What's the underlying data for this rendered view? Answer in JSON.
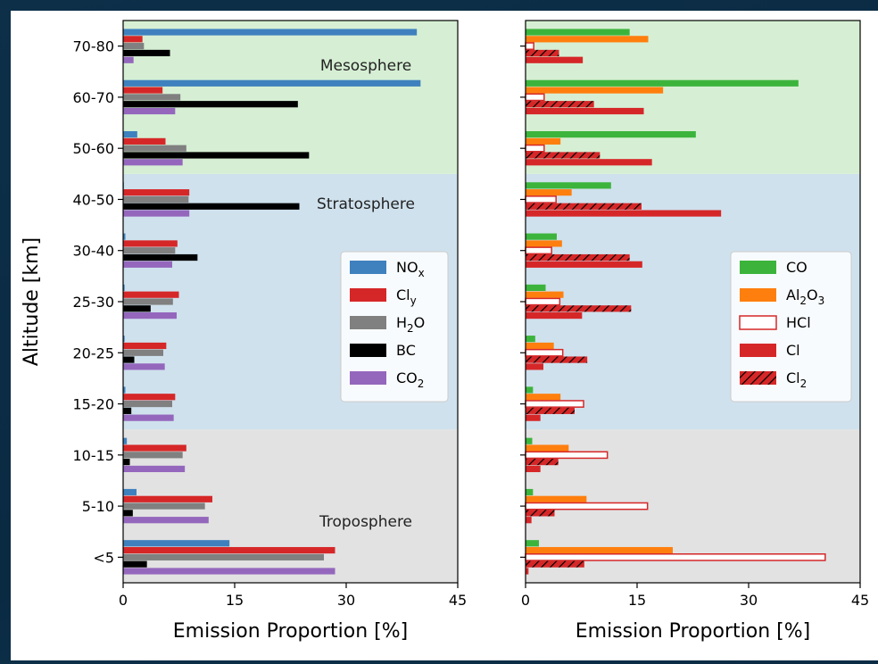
{
  "chart_data": [
    {
      "type": "bar",
      "orientation": "horizontal",
      "xlabel": "Emission Proportion [%]",
      "ylabel": "Altitude [km]",
      "xlim": [
        0,
        45
      ],
      "xticks": [
        "0",
        "15",
        "30",
        "45"
      ],
      "categories": [
        "<5",
        "5-10",
        "10-15",
        "15-20",
        "20-25",
        "25-30",
        "30-40",
        "40-50",
        "50-60",
        "60-70",
        "70-80"
      ],
      "regions": [
        {
          "label": "Troposphere",
          "from": "<5",
          "to": "15-20",
          "color": "#e2e2e2"
        },
        {
          "label": "Stratosphere",
          "from": "15-20",
          "to": "50-60",
          "color": "#cfe1ed"
        },
        {
          "label": "Mesosphere",
          "from": "50-60",
          "to": "70-80",
          "color": "#d6efd4"
        }
      ],
      "legend_position": "center-right",
      "series": [
        {
          "name": "NO<sub>x</sub>",
          "color": "#3f81be",
          "hatch": false,
          "hollow": false,
          "values": [
            14.3,
            1.8,
            0.5,
            0.3,
            0.2,
            0.2,
            0.3,
            0.1,
            1.9,
            40.0,
            39.5
          ]
        },
        {
          "name": "Cl<sub>y</sub>",
          "color": "#d62728",
          "hatch": false,
          "hollow": false,
          "values": [
            28.5,
            12.0,
            8.5,
            7.0,
            5.8,
            7.5,
            7.3,
            8.9,
            5.7,
            5.3,
            2.6
          ]
        },
        {
          "name": "H<sub>2</sub>O",
          "color": "#808080",
          "hatch": false,
          "hollow": false,
          "values": [
            27.0,
            11.0,
            8.0,
            6.6,
            5.4,
            6.7,
            7.0,
            8.8,
            8.5,
            7.7,
            2.8
          ]
        },
        {
          "name": "BC",
          "color": "#000000",
          "hatch": false,
          "hollow": false,
          "values": [
            3.2,
            1.3,
            0.9,
            1.1,
            1.5,
            3.7,
            10.0,
            23.7,
            25.0,
            23.5,
            6.3
          ]
        },
        {
          "name": "CO<sub>2</sub>",
          "color": "#9467bd",
          "hatch": false,
          "hollow": false,
          "values": [
            28.5,
            11.5,
            8.3,
            6.8,
            5.6,
            7.2,
            6.6,
            8.9,
            8.0,
            7.0,
            1.4
          ]
        }
      ],
      "bar_order": [
        0,
        1,
        2,
        3,
        4
      ]
    },
    {
      "type": "bar",
      "orientation": "horizontal",
      "xlabel": "Emission Proportion [%]",
      "ylabel": "",
      "xlim": [
        0,
        45
      ],
      "xticks": [
        "0",
        "15",
        "30",
        "45"
      ],
      "categories": [
        "<5",
        "5-10",
        "10-15",
        "15-20",
        "20-25",
        "25-30",
        "30-40",
        "40-50",
        "50-60",
        "60-70",
        "70-80"
      ],
      "regions": [
        {
          "label": "",
          "from": "<5",
          "to": "15-20",
          "color": "#e2e2e2"
        },
        {
          "label": "",
          "from": "15-20",
          "to": "50-60",
          "color": "#cfe1ed"
        },
        {
          "label": "",
          "from": "50-60",
          "to": "70-80",
          "color": "#d6efd4"
        }
      ],
      "legend_position": "center-right",
      "series": [
        {
          "name": "CO",
          "color": "#3cb43c",
          "hatch": false,
          "hollow": false,
          "values": [
            1.8,
            1.0,
            0.9,
            1.0,
            1.3,
            2.7,
            4.2,
            11.5,
            22.9,
            36.7,
            14.0
          ]
        },
        {
          "name": "Al<sub>2</sub>O<sub>3</sub>",
          "color": "#ff7f0e",
          "hatch": false,
          "hollow": false,
          "values": [
            19.8,
            8.2,
            5.8,
            4.7,
            3.8,
            5.1,
            4.9,
            6.2,
            4.7,
            18.5,
            16.5
          ]
        },
        {
          "name": "HCl",
          "color": "#d62728",
          "hatch": false,
          "hollow": true,
          "values": [
            40.3,
            16.4,
            11.0,
            7.8,
            5.0,
            4.6,
            3.5,
            4.1,
            2.5,
            2.5,
            1.1
          ]
        },
        {
          "name": "Cl",
          "color": "#d62728",
          "hatch": false,
          "hollow": false,
          "values": [
            0.4,
            0.8,
            2.0,
            2.0,
            2.4,
            7.6,
            15.7,
            26.3,
            17.0,
            15.9,
            7.7
          ]
        },
        {
          "name": "Cl<sub>2</sub>",
          "color": "#d62728",
          "hatch": true,
          "hollow": false,
          "values": [
            7.9,
            3.9,
            4.4,
            6.6,
            8.3,
            14.2,
            14.0,
            15.6,
            10.0,
            9.2,
            4.5
          ]
        }
      ],
      "bar_order": [
        0,
        1,
        2,
        4,
        3
      ]
    }
  ]
}
